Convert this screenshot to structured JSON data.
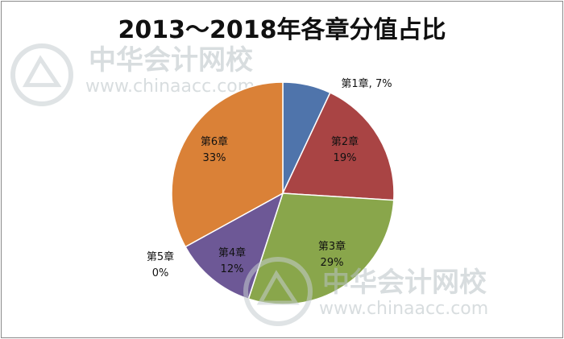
{
  "colors": {
    "slice_1": "#4f74ab",
    "slice_2": "#a94444",
    "slice_3": "#89a64b",
    "slice_4": "#6d5896",
    "slice_5": "#3a95ad",
    "slice_6": "#da8137",
    "watermark": "#b9c2c6"
  },
  "watermark": {
    "brand": "中华会计网校",
    "url": "www.chinaacc.com"
  },
  "chart_data": {
    "type": "pie",
    "title": "2013～2018年各章分值占比",
    "legend": "none",
    "slices": [
      {
        "name": "第1章",
        "value": 7,
        "label": "7%",
        "label_style": "inline"
      },
      {
        "name": "第2章",
        "value": 19,
        "label": "19%",
        "label_style": "stacked"
      },
      {
        "name": "第3章",
        "value": 29,
        "label": "29%",
        "label_style": "stacked"
      },
      {
        "name": "第4章",
        "value": 12,
        "label": "12%",
        "label_style": "stacked"
      },
      {
        "name": "第5章",
        "value": 0,
        "label": "0%",
        "label_style": "stacked"
      },
      {
        "name": "第6章",
        "value": 33,
        "label": "33%",
        "label_style": "stacked"
      }
    ]
  }
}
